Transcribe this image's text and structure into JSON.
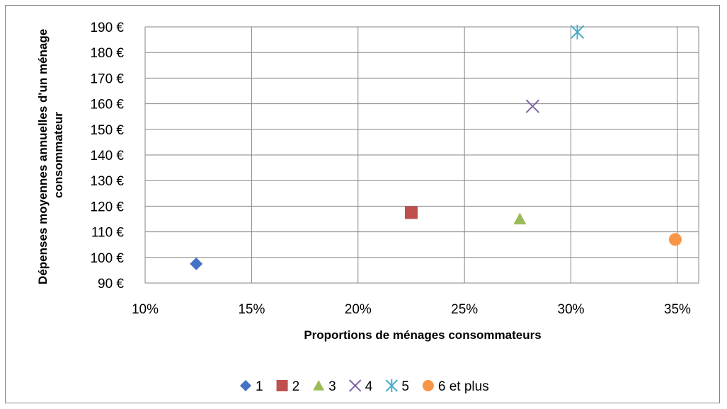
{
  "chart_data": {
    "type": "scatter",
    "title": "",
    "xlabel": "Proportions de ménages consommateurs",
    "ylabel": "Dépenses moyennes annuelles d'un ménage consommateur",
    "xlim": [
      10,
      36
    ],
    "ylim": [
      90,
      190
    ],
    "x_ticks": [
      10,
      15,
      20,
      25,
      30,
      35
    ],
    "x_tick_labels": [
      "10%",
      "15%",
      "20%",
      "25%",
      "30%",
      "35%"
    ],
    "y_ticks": [
      90,
      100,
      110,
      120,
      130,
      140,
      150,
      160,
      170,
      180,
      190
    ],
    "y_tick_labels": [
      "90 €",
      "100 €",
      "110 €",
      "120 €",
      "130 €",
      "140 €",
      "150 €",
      "160 €",
      "170 €",
      "180 €",
      "190 €"
    ],
    "grid": true,
    "legend_position": "bottom",
    "series": [
      {
        "name": "1",
        "marker": "diamond",
        "color": "#4472C4",
        "x": 12.4,
        "y": 97.5
      },
      {
        "name": "2",
        "marker": "square",
        "color": "#C0504D",
        "x": 22.5,
        "y": 117.5
      },
      {
        "name": "3",
        "marker": "triangle",
        "color": "#9BBB59",
        "x": 27.6,
        "y": 115
      },
      {
        "name": "4",
        "marker": "x",
        "color": "#8064A2",
        "x": 28.2,
        "y": 159
      },
      {
        "name": "5",
        "marker": "asterisk",
        "color": "#4BACC6",
        "x": 30.3,
        "y": 188
      },
      {
        "name": "6 et plus",
        "marker": "circle",
        "color": "#F79646",
        "x": 34.9,
        "y": 107
      }
    ]
  }
}
